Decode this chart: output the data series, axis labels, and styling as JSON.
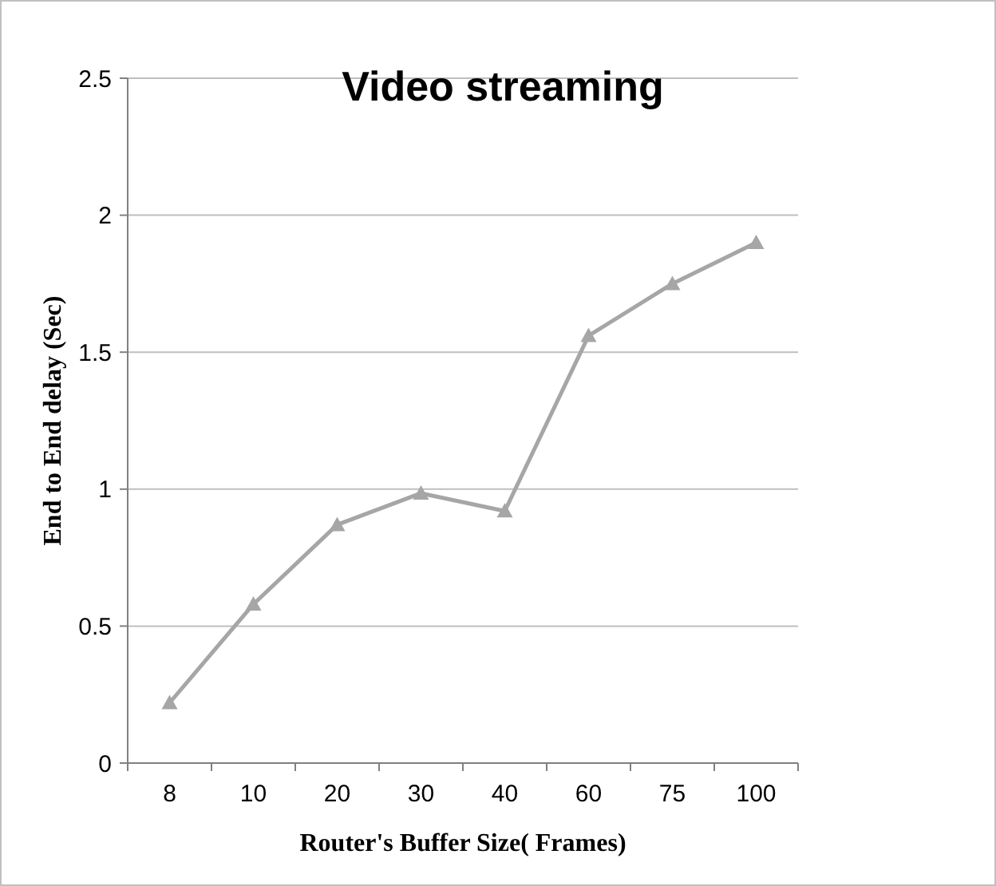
{
  "chart_data": {
    "type": "line",
    "title": "Video streaming",
    "xlabel": "Router's Buffer Size( Frames)",
    "ylabel": "End to End delay (Sec)",
    "categories": [
      "8",
      "10",
      "20",
      "30",
      "40",
      "60",
      "75",
      "100"
    ],
    "series": [
      {
        "color": "#a6a6a6",
        "values": [
          0.22,
          0.58,
          0.87,
          0.985,
          0.92,
          1.56,
          1.75,
          1.9
        ]
      }
    ],
    "ylim": [
      0,
      2.5
    ],
    "yticks": [
      0,
      0.5,
      1,
      1.5,
      2,
      2.5
    ],
    "grid": "y",
    "marker": "triangle",
    "line_style": "solid"
  }
}
